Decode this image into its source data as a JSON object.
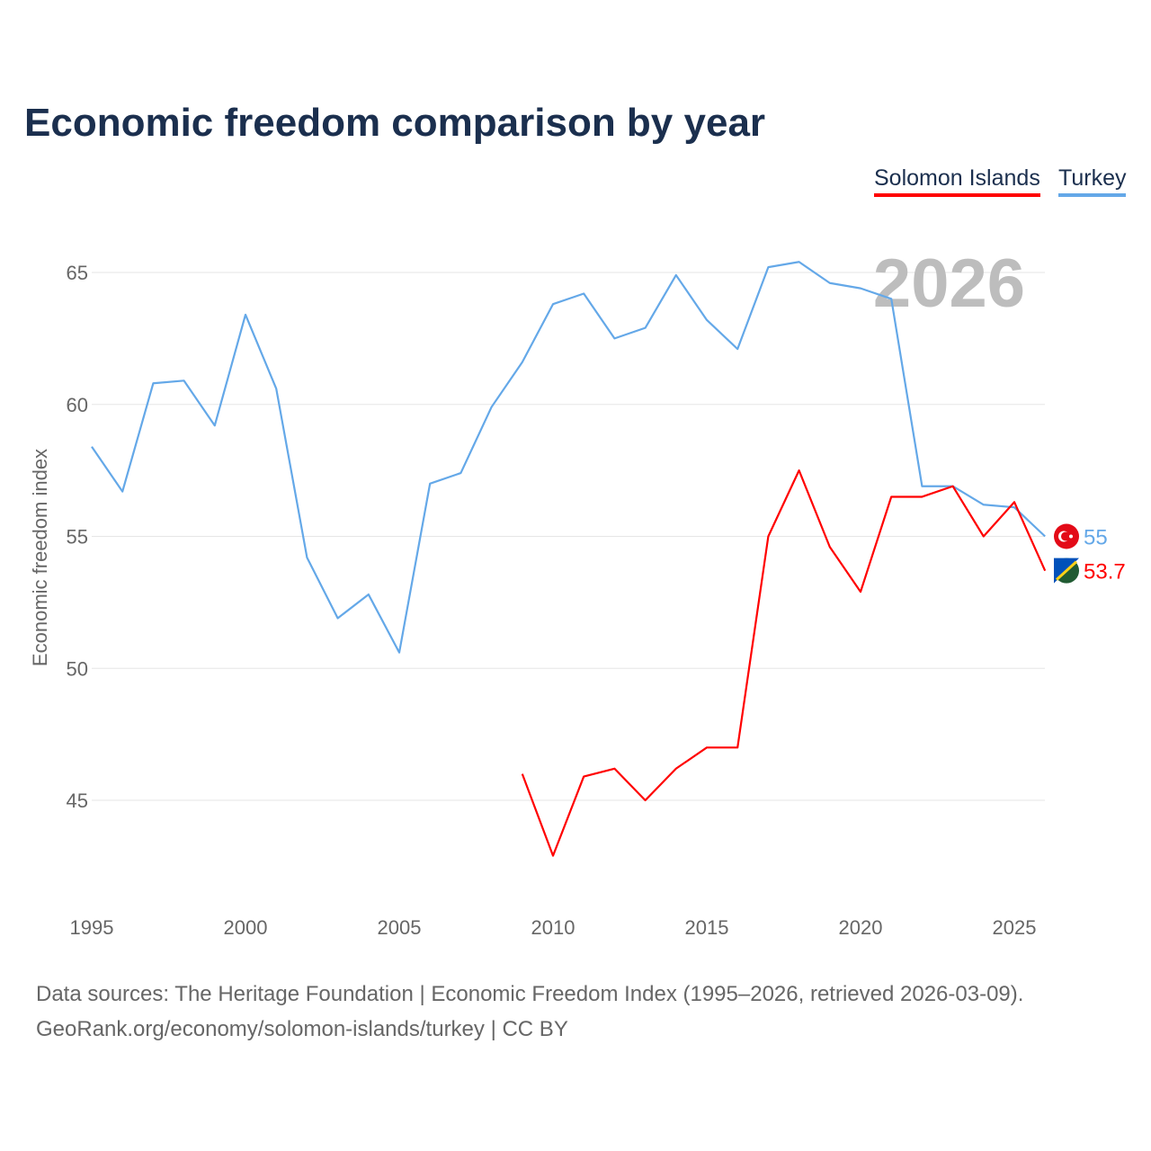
{
  "chart_data": {
    "type": "line",
    "title": "Economic freedom comparison by year",
    "xlabel": "",
    "ylabel": "Economic freedom index",
    "xlim": [
      1995,
      2026
    ],
    "ylim": [
      41.5,
      67
    ],
    "x_ticks": [
      "1995",
      "2000",
      "2005",
      "2010",
      "2015",
      "2020",
      "2025"
    ],
    "y_ticks": [
      "45",
      "50",
      "55",
      "60",
      "65"
    ],
    "grid": true,
    "legend_placement": "top-right",
    "year_watermark": "2026",
    "series": [
      {
        "name": "Solomon Islands",
        "color": "#ff0000",
        "end_label": "53.7",
        "x": [
          2009,
          2010,
          2011,
          2012,
          2013,
          2014,
          2015,
          2016,
          2017,
          2018,
          2019,
          2020,
          2021,
          2022,
          2023,
          2024,
          2025,
          2026
        ],
        "values": [
          46.0,
          42.9,
          45.9,
          46.2,
          45.0,
          46.2,
          47.0,
          47.0,
          55.0,
          57.5,
          54.6,
          52.9,
          56.5,
          56.5,
          56.9,
          55.0,
          56.3,
          53.7
        ]
      },
      {
        "name": "Turkey",
        "color": "#64a8e8",
        "end_label": "55",
        "x": [
          1995,
          1996,
          1997,
          1998,
          1999,
          2000,
          2001,
          2002,
          2003,
          2004,
          2005,
          2006,
          2007,
          2008,
          2009,
          2010,
          2011,
          2012,
          2013,
          2014,
          2015,
          2016,
          2017,
          2018,
          2019,
          2020,
          2021,
          2022,
          2023,
          2024,
          2025,
          2026
        ],
        "values": [
          58.4,
          56.7,
          60.8,
          60.9,
          59.2,
          63.4,
          60.6,
          54.2,
          51.9,
          52.8,
          50.6,
          57.0,
          57.4,
          59.9,
          61.6,
          63.8,
          64.2,
          62.5,
          62.9,
          64.9,
          63.2,
          62.1,
          65.2,
          65.4,
          64.6,
          64.4,
          64.0,
          56.9,
          56.9,
          56.2,
          56.1,
          55.0
        ]
      }
    ]
  },
  "footer": {
    "line1": "Data sources: The Heritage Foundation | Economic Freedom Index (1995–2026, retrieved 2026-03-09).",
    "line2": "GeoRank.org/economy/solomon-islands/turkey | CC BY"
  }
}
